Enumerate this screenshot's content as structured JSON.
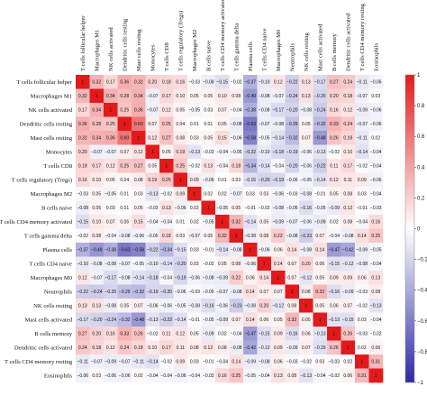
{
  "chart_data": {
    "type": "heatmap",
    "labels": [
      "T cells follicular helper",
      "Macrophages M1",
      "NK cells activated",
      "Dendritic cells resting",
      "Mast cells resting",
      "Monocytes",
      "T cells CD8",
      "T cells regulatory (Tregs)",
      "Macrophages M2",
      "B cells naive",
      "T cells CD4 memory activated",
      "T cells gamma delta",
      "Plasma cells",
      "T cells CD4 naive",
      "Macrophages M0",
      "Neutrophils",
      "NK cells resting",
      "Mast cells activated",
      "B cells memory",
      "Dendritic cells activated",
      "T cells CD4 memory resting",
      "Eosinophils"
    ],
    "matrix": [
      [
        1,
        0.32,
        0.17,
        0.36,
        0.32,
        0.2,
        0.18,
        0.16,
        -0.03,
        -0.08,
        -0.15,
        -0.02,
        -0.37,
        -0.1,
        0.12,
        -0.22,
        0.13,
        -0.17,
        0.27,
        0.24,
        -0.11,
        -0.06
      ],
      [
        0.32,
        1,
        0.34,
        0.28,
        0.34,
        -0.07,
        0.17,
        0.1,
        0.05,
        0.05,
        0.1,
        0.08,
        -0.49,
        -0.08,
        -0.07,
        -0.24,
        0.13,
        -0.2,
        0.2,
        0.18,
        -0.07,
        0.03
      ],
      [
        0.17,
        0.34,
        1,
        0.25,
        0.36,
        -0.07,
        0.12,
        0.05,
        -0.05,
        0.03,
        0.07,
        -0.04,
        -0.38,
        -0.08,
        -0.17,
        -0.2,
        -0.08,
        -0.24,
        0.16,
        0.12,
        -0.09,
        -0.06
      ],
      [
        0.36,
        0.28,
        0.25,
        1,
        0.6,
        0.07,
        0.25,
        0.04,
        0.01,
        0.01,
        0.05,
        -0.08,
        -0.63,
        -0.07,
        -0.08,
        -0.29,
        0.05,
        -0.32,
        0.33,
        0.24,
        -0.07,
        -0.06
      ],
      [
        0.32,
        0.34,
        0.36,
        0.6,
        1,
        0.12,
        0.27,
        0.08,
        0.03,
        0.05,
        0.15,
        -0.06,
        -0.58,
        -0.05,
        -0.14,
        -0.32,
        0.07,
        -0.48,
        0.26,
        0.18,
        -0.11,
        0.02
      ],
      [
        0.2,
        -0.07,
        -0.07,
        0.07,
        0.12,
        1,
        0.05,
        0.19,
        -0.13,
        -0.03,
        -0.04,
        -0.05,
        -0.22,
        -0.1,
        -0.18,
        -0.19,
        -0.06,
        -0.13,
        -0.02,
        0.1,
        -0.14,
        -0.04
      ],
      [
        0.18,
        0.17,
        0.12,
        0.25,
        0.27,
        0.05,
        1,
        0.25,
        -0.02,
        0.13,
        -0.04,
        0.18,
        -0.34,
        -0.14,
        -0.04,
        -0.2,
        -0.06,
        -0.22,
        0.11,
        0.17,
        -0.02,
        -0.04
      ],
      [
        0.16,
        0.1,
        0.05,
        0.04,
        0.08,
        0.19,
        0.25,
        1,
        0.09,
        -0.06,
        0.01,
        0.03,
        -0.15,
        -0.2,
        -0.19,
        -0.06,
        -0.05,
        -0.14,
        0.12,
        0.11,
        0.09,
        -0.06
      ],
      [
        -0.03,
        0.05,
        -0.05,
        0.01,
        0.03,
        -0.13,
        -0.02,
        0.09,
        1,
        0.02,
        0.02,
        -0.07,
        0.03,
        0.03,
        -0.06,
        -0.03,
        -0.08,
        -0.01,
        0.05,
        0.08,
        0.03,
        -0.04
      ],
      [
        -0.08,
        0.05,
        0.03,
        0.01,
        0.05,
        -0.03,
        0.13,
        -0.06,
        0.02,
        1,
        -0.05,
        0.05,
        -0.01,
        -0.02,
        -0.08,
        -0.05,
        -0.16,
        -0.05,
        -0.09,
        0.12,
        -0.01,
        -0.03
      ],
      [
        -0.15,
        0.1,
        0.07,
        0.05,
        0.15,
        -0.04,
        -0.04,
        0.01,
        0.02,
        -0.05,
        1,
        0.32,
        -0.14,
        0.05,
        -0.09,
        -0.07,
        -0.06,
        -0.09,
        0.02,
        0.08,
        -0.04,
        0.16
      ],
      [
        -0.02,
        0.08,
        -0.04,
        -0.08,
        -0.06,
        -0.05,
        0.18,
        0.03,
        -0.07,
        0.05,
        0.32,
        1,
        -0.08,
        0.08,
        0.22,
        -0.08,
        -0.23,
        0.07,
        -0.04,
        -0.08,
        0.14,
        0.25
      ],
      [
        -0.37,
        -0.49,
        -0.38,
        -0.63,
        -0.58,
        -0.22,
        -0.34,
        -0.15,
        0.03,
        -0.01,
        -0.14,
        -0.08,
        1,
        -0.06,
        0.06,
        0.14,
        -0.08,
        0.14,
        -0.47,
        -0.42,
        -0.09,
        -0.05
      ],
      [
        -0.1,
        -0.08,
        -0.08,
        -0.07,
        -0.05,
        -0.1,
        -0.14,
        -0.2,
        0.03,
        -0.02,
        0.05,
        0.08,
        -0.06,
        1,
        0.14,
        0.07,
        0.2,
        0.06,
        -0.15,
        -0.12,
        -0.08,
        -0.04
      ],
      [
        0.12,
        -0.07,
        -0.17,
        -0.08,
        -0.14,
        -0.18,
        -0.04,
        -0.19,
        -0.06,
        -0.08,
        -0.09,
        0.22,
        0.06,
        0.14,
        1,
        0.07,
        -0.12,
        0.05,
        0.09,
        0.09,
        0.06,
        0.13
      ],
      [
        -0.22,
        -0.24,
        -0.2,
        -0.29,
        -0.32,
        -0.19,
        -0.2,
        -0.06,
        -0.03,
        -0.05,
        -0.07,
        -0.08,
        0.14,
        0.07,
        0.07,
        1,
        0.08,
        0.32,
        -0.16,
        -0.09,
        -0.03,
        0.08
      ],
      [
        0.13,
        0.13,
        -0.08,
        0.05,
        0.07,
        -0.06,
        -0.06,
        -0.05,
        -0.08,
        -0.16,
        -0.06,
        -0.23,
        -0.08,
        0.2,
        -0.12,
        0.08,
        1,
        0.05,
        0.06,
        0.07,
        -0.02,
        -0.13
      ],
      [
        -0.17,
        -0.2,
        -0.24,
        -0.32,
        -0.48,
        -0.13,
        -0.22,
        -0.14,
        -0.01,
        -0.05,
        -0.09,
        0.07,
        0.14,
        0.06,
        0.05,
        0.32,
        0.05,
        1,
        -0.13,
        -0.15,
        0.03,
        -0.04
      ],
      [
        0.27,
        0.2,
        0.16,
        0.33,
        0.26,
        -0.02,
        0.11,
        0.12,
        0.05,
        -0.09,
        0.02,
        -0.04,
        -0.47,
        -0.15,
        0.09,
        -0.16,
        0.06,
        -0.13,
        1,
        0.26,
        -0.03,
        -0.02
      ],
      [
        0.24,
        0.18,
        0.12,
        0.24,
        0.18,
        0.1,
        0.17,
        0.11,
        0.08,
        0.12,
        0.08,
        -0.08,
        -0.42,
        -0.12,
        0.09,
        -0.09,
        0.07,
        -0.15,
        0.26,
        1,
        0.02,
        0.06
      ],
      [
        -0.11,
        -0.07,
        -0.09,
        -0.07,
        -0.11,
        -0.14,
        -0.02,
        0.09,
        0.03,
        -0.01,
        -0.04,
        0.14,
        -0.09,
        -0.08,
        0.06,
        -0.03,
        -0.02,
        0.03,
        -0.03,
        0.02,
        1,
        0.31
      ],
      [
        -0.06,
        0.03,
        -0.06,
        -0.06,
        0.02,
        -0.04,
        -0.04,
        -0.06,
        -0.04,
        -0.03,
        0.16,
        0.25,
        -0.05,
        -0.04,
        0.13,
        0.08,
        -0.13,
        -0.04,
        -0.02,
        0.06,
        0.31,
        1
      ]
    ],
    "range": [
      -1,
      1
    ],
    "colorbar_ticks": [
      1,
      0.8,
      0.6,
      0.4,
      0.2,
      0,
      -0.2,
      -0.4,
      -0.6,
      -0.8,
      -1
    ],
    "colors": {
      "positive": "#e31a1c",
      "negative": "#2b2aa6",
      "neutral": "#ffffff"
    }
  }
}
